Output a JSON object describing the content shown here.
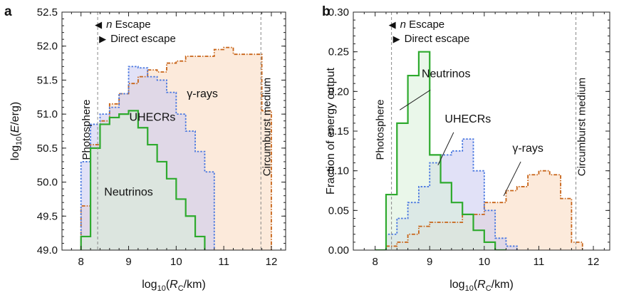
{
  "panels": [
    {
      "letter": "a",
      "id": "a"
    },
    {
      "letter": "b",
      "id": "b"
    }
  ],
  "colors": {
    "neutrinos_line": "#2eaa2e",
    "neutrinos_fill": "#d8f0d8",
    "uhecr_line": "#4a78e0",
    "uhecr_fill": "#c8c8f0",
    "gamma_line": "#c86418",
    "gamma_fill": "#fbe3cf",
    "marker_line": "#888888"
  },
  "chart_data": [
    {
      "id": "a",
      "type": "area",
      "panel_label": "a",
      "ylabel_html": "log10(E/erg)",
      "xlabel_html": "log10(RC/km)",
      "xlim": [
        7.6,
        12.3
      ],
      "ylim": [
        49.0,
        52.5
      ],
      "xticks": [
        "8",
        "9",
        "10",
        "11",
        "12"
      ],
      "yticks": [
        "49.0",
        "49.5",
        "50.0",
        "50.5",
        "51.0",
        "51.5",
        "52.0",
        "52.5"
      ],
      "bin_edges": [
        8.0,
        8.2,
        8.4,
        8.6,
        8.8,
        9.0,
        9.2,
        9.4,
        9.6,
        9.8,
        10.0,
        10.2,
        10.4,
        10.6,
        10.8,
        11.0,
        11.2,
        11.4,
        11.6,
        11.8,
        12.0
      ],
      "series": [
        {
          "name": "γ-rays",
          "key": "gamma",
          "values": [
            49.65,
            50.55,
            50.9,
            51.15,
            51.3,
            51.45,
            51.55,
            51.65,
            51.62,
            51.75,
            51.78,
            51.85,
            51.85,
            51.85,
            51.95,
            51.98,
            51.88,
            51.88,
            51.88,
            51.05,
            null
          ]
        },
        {
          "name": "UHECRs",
          "key": "uhecr",
          "values": [
            50.3,
            50.85,
            51.0,
            51.1,
            51.3,
            51.7,
            51.68,
            51.55,
            51.5,
            51.32,
            51.0,
            50.75,
            50.45,
            50.15,
            null,
            null,
            null,
            null,
            null,
            null,
            null
          ]
        },
        {
          "name": "Neutrinos",
          "key": "neutrinos",
          "values": [
            49.2,
            50.5,
            50.85,
            50.95,
            51.0,
            51.05,
            50.8,
            50.55,
            50.3,
            50.05,
            49.75,
            49.5,
            49.2,
            null,
            null,
            null,
            null,
            null,
            null,
            null,
            null
          ]
        }
      ],
      "vlines": [
        {
          "x": 8.35,
          "label": "Photosphere"
        },
        {
          "x": 11.78,
          "label": "Circumburst medium"
        }
      ],
      "series_labels": [
        {
          "text": "γ-rays",
          "key": "gamma",
          "x": 10.55,
          "y": 51.25
        },
        {
          "text": "UHECRs",
          "key": "uhecr",
          "x": 9.5,
          "y": 50.9
        },
        {
          "text": "Neutrinos",
          "key": "neutrinos",
          "x": 9.0,
          "y": 49.8
        }
      ],
      "legend": [
        {
          "marker": "◀",
          "text_italic": "n",
          "text": " Escape"
        },
        {
          "marker": "▶",
          "text": "Direct escape"
        }
      ]
    },
    {
      "id": "b",
      "type": "area",
      "panel_label": "b",
      "ylabel_html": "Fraction of energy output",
      "xlabel_html": "log10(RC/km)",
      "xlim": [
        7.6,
        12.3
      ],
      "ylim": [
        0.0,
        0.3
      ],
      "xticks": [
        "8",
        "9",
        "10",
        "11",
        "12"
      ],
      "yticks": [
        "0.00",
        "0.05",
        "0.10",
        "0.15",
        "0.20",
        "0.25",
        "0.30"
      ],
      "bin_edges": [
        8.0,
        8.2,
        8.4,
        8.6,
        8.8,
        9.0,
        9.2,
        9.4,
        9.6,
        9.8,
        10.0,
        10.2,
        10.4,
        10.6,
        10.8,
        11.0,
        11.2,
        11.4,
        11.6,
        11.8
      ],
      "series": [
        {
          "name": "γ-rays",
          "key": "gamma",
          "values": [
            0.0,
            0.005,
            0.01,
            0.02,
            0.03,
            0.035,
            0.035,
            0.035,
            0.045,
            0.045,
            0.06,
            0.06,
            0.075,
            0.08,
            0.095,
            0.1,
            0.095,
            0.065,
            0.01
          ]
        },
        {
          "name": "UHECRs",
          "key": "uhecr",
          "values": [
            0.0,
            0.02,
            0.04,
            0.06,
            0.08,
            0.11,
            0.12,
            0.125,
            0.14,
            0.1,
            0.05,
            0.015,
            0.005,
            null,
            null,
            null,
            null,
            null,
            null
          ]
        },
        {
          "name": "Neutrinos",
          "key": "neutrinos",
          "values": [
            0.0,
            0.07,
            0.16,
            0.22,
            0.25,
            0.12,
            0.085,
            0.06,
            0.045,
            0.025,
            0.01,
            0.0,
            null,
            null,
            null,
            null,
            null,
            null,
            null
          ]
        }
      ],
      "vlines": [
        {
          "x": 8.3,
          "label": "Photosphere"
        },
        {
          "x": 11.68,
          "label": "Circumburst medium"
        }
      ],
      "series_labels": [
        {
          "text": "Neutrinos",
          "key": "neutrinos",
          "x": 9.3,
          "y": 0.218
        },
        {
          "text": "UHECRs",
          "key": "uhecr",
          "x": 9.7,
          "y": 0.161
        },
        {
          "text": "γ-rays",
          "key": "gamma",
          "x": 10.8,
          "y": 0.124
        }
      ],
      "legend": [
        {
          "marker": "◀",
          "text_italic": "n",
          "text": " Escape"
        },
        {
          "marker": "▶",
          "text": "Direct escape"
        }
      ]
    }
  ]
}
